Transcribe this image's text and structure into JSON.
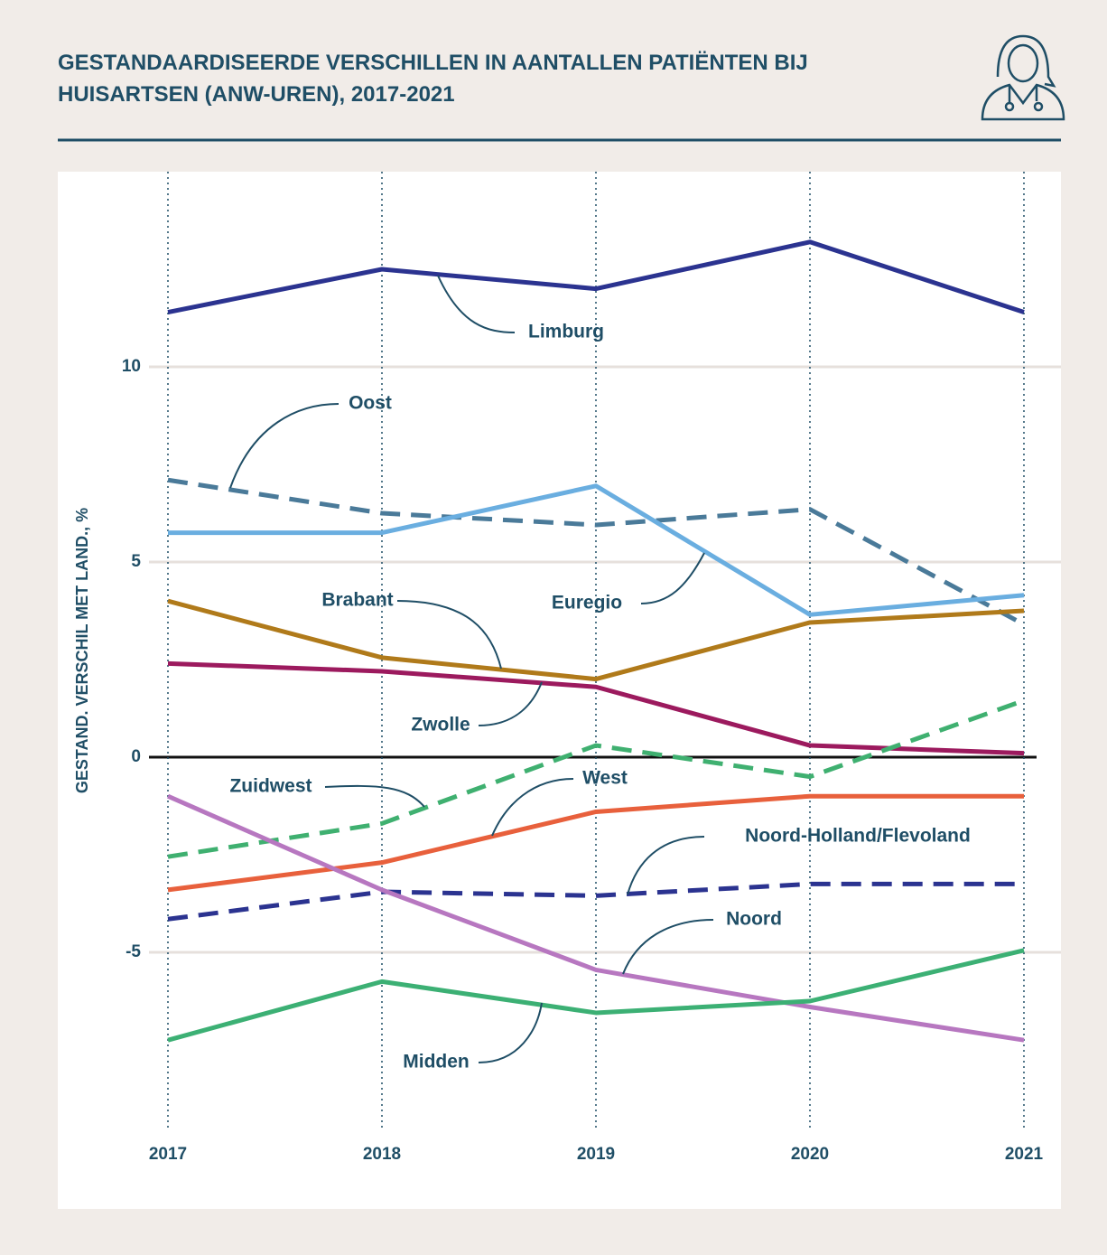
{
  "chart_data": {
    "type": "line",
    "title": "GESTANDAARDISEERDE VERSCHILLEN IN AANTALLEN PATIËNTEN BIJ HUISARTSEN (ANW-UREN), 2017-2021",
    "ylabel": "GESTAND. VERSCHIL MET LAND., %",
    "x": [
      2017,
      2018,
      2019,
      2020,
      2021
    ],
    "xlim": [
      2017,
      2021
    ],
    "xticks": [
      2017,
      2018,
      2019,
      2020,
      2021
    ],
    "ylim": [
      -9.5,
      15
    ],
    "yticks": [
      -5,
      0,
      5,
      10
    ],
    "grid": true,
    "series": [
      {
        "name": "Limburg",
        "color": "#2b3390",
        "dashed": false,
        "values": [
          11.4,
          12.5,
          12.0,
          13.2,
          11.4
        ]
      },
      {
        "name": "Oost",
        "color": "#4a7a99",
        "dashed": true,
        "values": [
          7.1,
          6.25,
          5.95,
          6.35,
          3.4
        ]
      },
      {
        "name": "Euregio",
        "color": "#6aaee0",
        "dashed": false,
        "values": [
          5.75,
          5.75,
          6.95,
          3.65,
          4.15
        ]
      },
      {
        "name": "Brabant",
        "color": "#b07a1a",
        "dashed": false,
        "values": [
          4.0,
          2.55,
          2.0,
          3.45,
          3.75
        ]
      },
      {
        "name": "Zwolle",
        "color": "#9c1a5e",
        "dashed": false,
        "values": [
          2.4,
          2.2,
          1.8,
          0.3,
          0.1
        ]
      },
      {
        "name": "Zuidwest",
        "color": "#3fb070",
        "dashed": true,
        "values": [
          -2.55,
          -1.7,
          0.3,
          -0.5,
          1.45
        ]
      },
      {
        "name": "West",
        "color": "#e8603c",
        "dashed": false,
        "values": [
          -3.4,
          -2.7,
          -1.4,
          -1.0,
          -1.0
        ]
      },
      {
        "name": "Noord-Holland/Flevoland",
        "color": "#2b3390",
        "dashed": true,
        "values": [
          -4.15,
          -3.45,
          -3.55,
          -3.25,
          -3.25
        ]
      },
      {
        "name": "Noord",
        "color": "#b777c0",
        "dashed": false,
        "values": [
          -1.0,
          -3.4,
          -5.45,
          -6.4,
          -7.25
        ]
      },
      {
        "name": "Midden",
        "color": "#3cb074",
        "dashed": false,
        "values": [
          -7.25,
          -5.75,
          -6.55,
          -6.25,
          -4.95
        ]
      }
    ]
  }
}
